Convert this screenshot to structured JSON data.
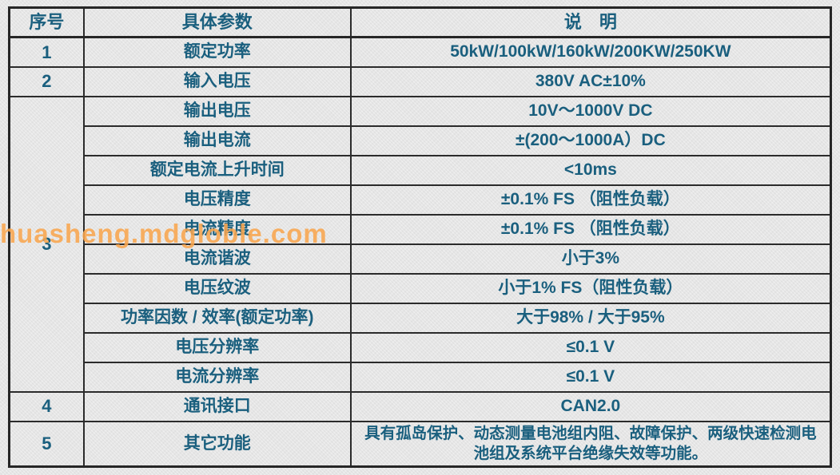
{
  "page": {
    "background_color": "#e8e8e8",
    "text_color": "#1a5f7e",
    "border_color": "#2b2b2b"
  },
  "watermark": {
    "text": "huasheng.mdgloble.com",
    "color": "#f8a54d"
  },
  "table": {
    "headers": {
      "no": "序号",
      "param": "具体参数",
      "desc": "说　明"
    },
    "rows": [
      {
        "no": "1",
        "param": "额定功率",
        "desc": "50kW/100kW/160kW/200KW/250KW"
      },
      {
        "no": "2",
        "param": "输入电压",
        "desc": "380V AC±10%"
      },
      {
        "no": "3",
        "param": "输出电压",
        "desc": "10V～1000V DC"
      },
      {
        "param": "输出电流",
        "desc": "±(200～1000A）DC"
      },
      {
        "param": "额定电流上升时间",
        "desc": "<10ms"
      },
      {
        "param": "电压精度",
        "desc": "±0.1% FS （阻性负载）"
      },
      {
        "param": "电流精度",
        "desc": "±0.1% FS （阻性负载）"
      },
      {
        "param": "电流谐波",
        "desc": "小于3%"
      },
      {
        "param": "电压纹波",
        "desc": "小于1% FS（阻性负载）"
      },
      {
        "param": "功率因数 / 效率(额定功率)",
        "desc": "大于98% / 大于95%"
      },
      {
        "param": "电压分辨率",
        "desc": "≤0.1 V"
      },
      {
        "param": "电流分辨率",
        "desc": "≤0.1 V"
      },
      {
        "no": "4",
        "param": "通讯接口",
        "desc": "CAN2.0"
      },
      {
        "no": "5",
        "param": "其它功能",
        "desc": "具有孤岛保护、动态测量电池组内阻、故障保护、两级快速检测电池组及系统平台绝缘失效等功能。"
      }
    ]
  }
}
